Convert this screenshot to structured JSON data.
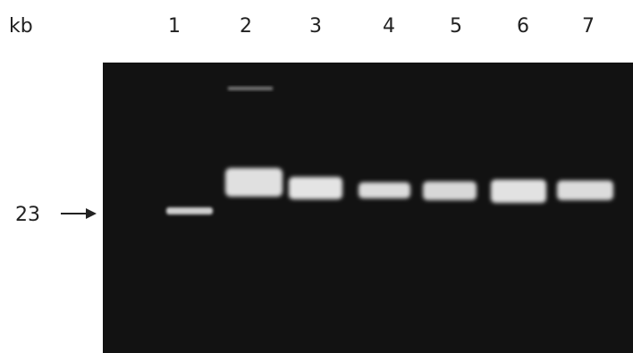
{
  "header_label": "kb",
  "lanes": [
    "1",
    "2",
    "3",
    "4",
    "5",
    "6",
    "7"
  ],
  "marker": {
    "label": "23"
  }
}
